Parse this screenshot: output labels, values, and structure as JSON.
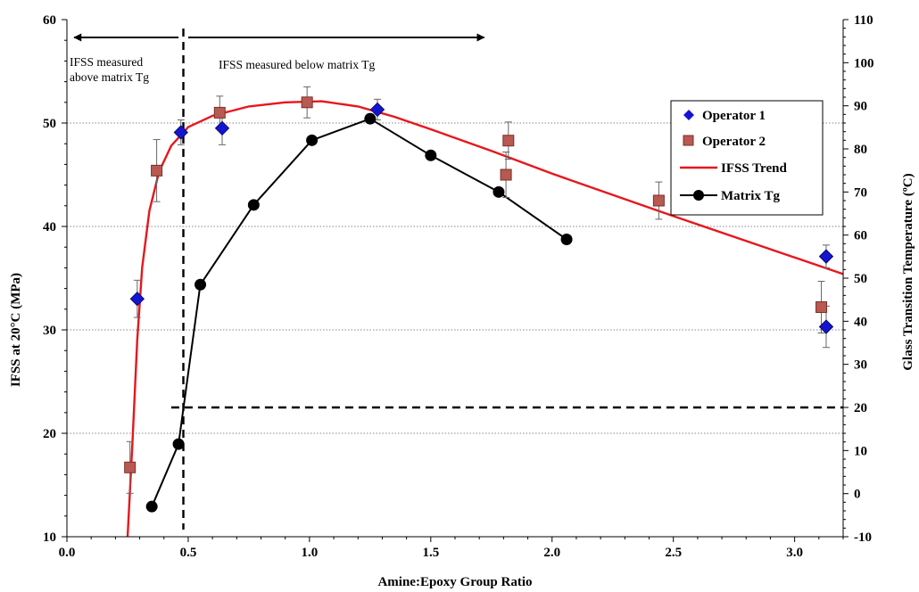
{
  "chart_data": {
    "type": "scatter",
    "title": "",
    "xlabel": "Amine:Epoxy Group Ratio",
    "ylabel": "IFSS at 20°C (MPa)",
    "y2label": "Glass Transition Temperature (ºC)",
    "xlim": [
      0.0,
      3.2
    ],
    "ylim": [
      10,
      60
    ],
    "y2lim": [
      -10,
      110
    ],
    "x_ticks": [
      "0.0",
      "0.5",
      "1.0",
      "1.5",
      "2.0",
      "2.5",
      "3.0"
    ],
    "x_tick_values": [
      0.0,
      0.5,
      1.0,
      1.5,
      2.0,
      2.5,
      3.0
    ],
    "y_ticks": [
      "10",
      "20",
      "30",
      "40",
      "50",
      "60"
    ],
    "y_tick_values": [
      10,
      20,
      30,
      40,
      50,
      60
    ],
    "y2_ticks": [
      "-10",
      "0",
      "10",
      "20",
      "30",
      "40",
      "50",
      "60",
      "70",
      "80",
      "90",
      "100",
      "110"
    ],
    "y2_tick_values": [
      -10,
      0,
      10,
      20,
      30,
      40,
      50,
      60,
      70,
      80,
      90,
      100,
      110
    ],
    "grid": "horizontal dotted at y=20,30,40,50",
    "legend_position": "right",
    "series": [
      {
        "name": "Operator 1",
        "marker": "diamond",
        "color": "#1515d0",
        "axis": "left",
        "points": [
          {
            "x": 0.29,
            "y": 33.0,
            "err": 1.8
          },
          {
            "x": 0.47,
            "y": 49.1,
            "err": 1.2
          },
          {
            "x": 0.64,
            "y": 49.5,
            "err": 1.6
          },
          {
            "x": 1.28,
            "y": 51.3,
            "err": 1.0
          },
          {
            "x": 3.13,
            "y": 37.1,
            "err": 1.1
          },
          {
            "x": 3.13,
            "y": 30.3,
            "err": 2.0
          }
        ]
      },
      {
        "name": "Operator 2",
        "marker": "square",
        "color": "#b85a52",
        "axis": "left",
        "points": [
          {
            "x": 0.26,
            "y": 16.7,
            "err": 2.5
          },
          {
            "x": 0.37,
            "y": 45.4,
            "err": 3.0
          },
          {
            "x": 0.63,
            "y": 51.0,
            "err": 1.6
          },
          {
            "x": 0.99,
            "y": 52.0,
            "err": 1.5
          },
          {
            "x": 1.81,
            "y": 45.0,
            "err": 2.2
          },
          {
            "x": 1.82,
            "y": 48.3,
            "err": 1.8
          },
          {
            "x": 2.44,
            "y": 42.5,
            "err": 1.8
          },
          {
            "x": 3.11,
            "y": 32.2,
            "err": 2.5
          }
        ]
      },
      {
        "name": "IFSS Trend",
        "marker": "line",
        "color": "#e8161b",
        "axis": "left",
        "points": [
          {
            "x": 0.25,
            "y": 10.0
          },
          {
            "x": 0.27,
            "y": 19.0
          },
          {
            "x": 0.29,
            "y": 29.0
          },
          {
            "x": 0.31,
            "y": 36.0
          },
          {
            "x": 0.34,
            "y": 41.5
          },
          {
            "x": 0.38,
            "y": 45.3
          },
          {
            "x": 0.43,
            "y": 47.8
          },
          {
            "x": 0.5,
            "y": 49.6
          },
          {
            "x": 0.6,
            "y": 50.7
          },
          {
            "x": 0.75,
            "y": 51.6
          },
          {
            "x": 0.9,
            "y": 52.0
          },
          {
            "x": 1.05,
            "y": 52.1
          },
          {
            "x": 1.2,
            "y": 51.6
          },
          {
            "x": 1.35,
            "y": 50.6
          },
          {
            "x": 1.5,
            "y": 49.4
          },
          {
            "x": 1.75,
            "y": 47.3
          },
          {
            "x": 2.0,
            "y": 45.1
          },
          {
            "x": 2.5,
            "y": 41.0
          },
          {
            "x": 3.0,
            "y": 37.0
          },
          {
            "x": 3.2,
            "y": 35.4
          }
        ]
      },
      {
        "name": "Matrix Tg",
        "marker": "circle-line",
        "color": "#000000",
        "axis": "right",
        "points": [
          {
            "x": 0.35,
            "y": -3.0
          },
          {
            "x": 0.46,
            "y": 11.5
          },
          {
            "x": 0.55,
            "y": 48.5
          },
          {
            "x": 0.77,
            "y": 67.0
          },
          {
            "x": 1.01,
            "y": 82.0
          },
          {
            "x": 1.25,
            "y": 87.0
          },
          {
            "x": 1.5,
            "y": 78.5
          },
          {
            "x": 1.78,
            "y": 70.0
          },
          {
            "x": 2.06,
            "y": 59.0
          }
        ]
      }
    ],
    "reference_lines": [
      {
        "orientation": "vertical",
        "x": 0.48,
        "style": "dashed"
      },
      {
        "orientation": "horizontal",
        "axis": "right",
        "y": 20,
        "x_from": 0.43,
        "x_to": 3.2,
        "style": "dashed"
      }
    ],
    "annotations": [
      {
        "text_lines": [
          "IFSS measured",
          "above matrix Tg"
        ],
        "arrow": "left",
        "x_from": 0.46,
        "x_to": 0.03
      },
      {
        "text_lines": [
          "IFSS measured below matrix Tg"
        ],
        "arrow": "right",
        "x_from": 0.5,
        "x_to": 1.72
      }
    ]
  }
}
